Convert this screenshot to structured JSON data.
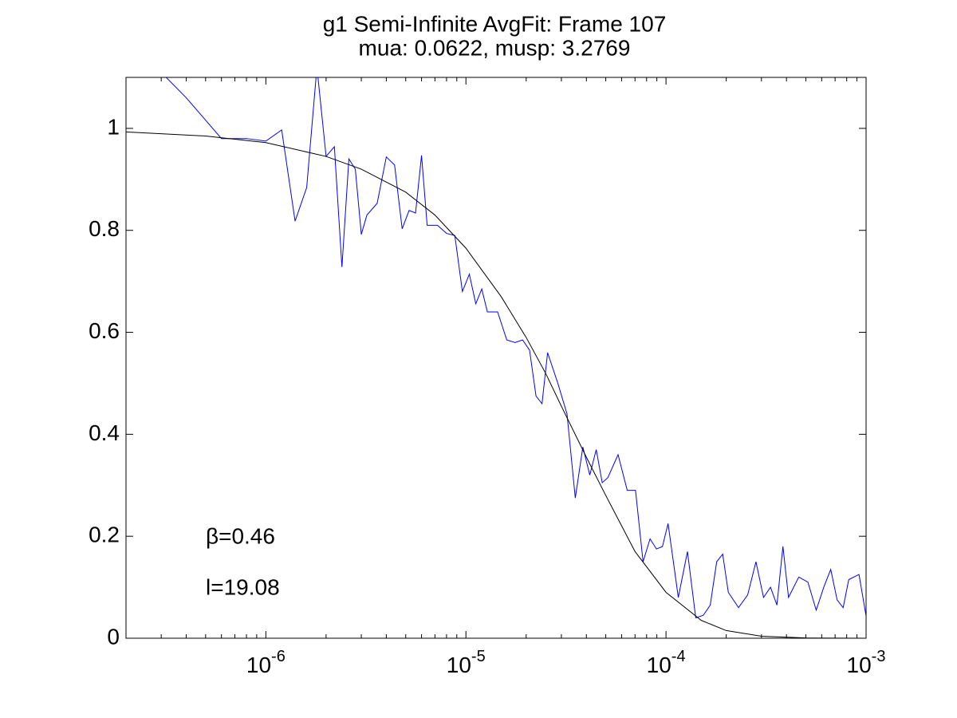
{
  "chart_data": {
    "type": "line",
    "title": "g1 Semi-Infinite AvgFit: Frame 107",
    "subtitle": "mua: 0.0622, musp: 3.2769",
    "xscale": "log",
    "xlim": [
      2e-07,
      0.001
    ],
    "ylim": [
      0,
      1.1
    ],
    "xticks": [
      {
        "value": 1e-06,
        "label": "10^{-6}"
      },
      {
        "value": 1e-05,
        "label": "10^{-5}"
      },
      {
        "value": 0.0001,
        "label": "10^{-4}"
      },
      {
        "value": 0.001,
        "label": "10^{-3}"
      }
    ],
    "yticks": [
      0,
      0.2,
      0.4,
      0.6,
      0.8,
      1
    ],
    "grid": false,
    "box": true,
    "annotations": [
      "β=0.46",
      "l=19.08"
    ],
    "series": [
      {
        "color": "#0000ff",
        "x": [
          2e-07,
          4e-07,
          6e-07,
          8e-07,
          1e-06,
          1.2e-06,
          1.4e-06,
          1.6e-06,
          1.8e-06,
          2e-06,
          2.2e-06,
          2.4e-06,
          2.6e-06,
          2.8e-06,
          3e-06,
          3.2e-06,
          3.6e-06,
          4e-06,
          4.4e-06,
          4.8e-06,
          5.2e-06,
          5.6e-06,
          6e-06,
          6.4e-06,
          7.2e-06,
          8e-06,
          8.8e-06,
          9.6e-06,
          1.04e-05,
          1.12e-05,
          1.2e-05,
          1.28e-05,
          1.44e-05,
          1.6e-05,
          1.76e-05,
          1.92e-05,
          2.08e-05,
          2.24e-05,
          2.4e-05,
          2.56e-05,
          2.88e-05,
          3.2e-05,
          3.52e-05,
          3.84e-05,
          4.16e-05,
          4.48e-05,
          4.8e-05,
          5.12e-05,
          5.76e-05,
          6.4e-05,
          7.04e-05,
          7.68e-05,
          8.32e-05,
          8.96e-05,
          9.6e-05,
          0.0001024,
          0.0001152,
          0.000128,
          0.0001408,
          0.0001536,
          0.0001664,
          0.0001792,
          0.000192,
          0.0002048,
          0.0002304,
          0.000256,
          0.0002816,
          0.0003072,
          0.0003328,
          0.0003584,
          0.000384,
          0.0004096,
          0.0004608,
          0.000512,
          0.0005632,
          0.0006144,
          0.0006656,
          0.0007168,
          0.000768,
          0.0008192,
          0.0009216,
          0.001024
        ],
        "values": [
          1.18,
          1.06,
          0.98,
          0.98,
          0.975,
          0.997,
          0.818,
          0.884,
          1.12,
          0.945,
          0.964,
          0.728,
          0.94,
          0.92,
          0.792,
          0.83,
          0.853,
          0.944,
          0.928,
          0.803,
          0.839,
          0.834,
          0.947,
          0.81,
          0.81,
          0.794,
          0.79,
          0.68,
          0.714,
          0.656,
          0.685,
          0.64,
          0.64,
          0.585,
          0.58,
          0.585,
          0.565,
          0.475,
          0.46,
          0.56,
          0.5,
          0.44,
          0.275,
          0.375,
          0.32,
          0.37,
          0.305,
          0.315,
          0.36,
          0.29,
          0.29,
          0.15,
          0.195,
          0.175,
          0.18,
          0.225,
          0.08,
          0.17,
          0.04,
          0.045,
          0.065,
          0.15,
          0.165,
          0.09,
          0.06,
          0.085,
          0.15,
          0.08,
          0.1,
          0.065,
          0.18,
          0.08,
          0.12,
          0.11,
          0.055,
          0.1,
          0.135,
          0.075,
          0.06,
          0.115,
          0.125,
          0.02
        ]
      },
      {
        "color": "#000000",
        "x": [
          2e-07,
          5e-07,
          1e-06,
          2e-06,
          3e-06,
          5e-06,
          7e-06,
          1e-05,
          1.5e-05,
          2e-05,
          2.5e-05,
          3e-05,
          4e-05,
          5e-05,
          7e-05,
          0.0001,
          0.00015,
          0.0002,
          0.0003,
          0.0005,
          0.001
        ],
        "values": [
          0.993,
          0.985,
          0.972,
          0.945,
          0.92,
          0.875,
          0.83,
          0.765,
          0.67,
          0.59,
          0.52,
          0.455,
          0.355,
          0.28,
          0.17,
          0.09,
          0.035,
          0.015,
          0.004,
          0.0005,
          0
        ]
      }
    ]
  }
}
